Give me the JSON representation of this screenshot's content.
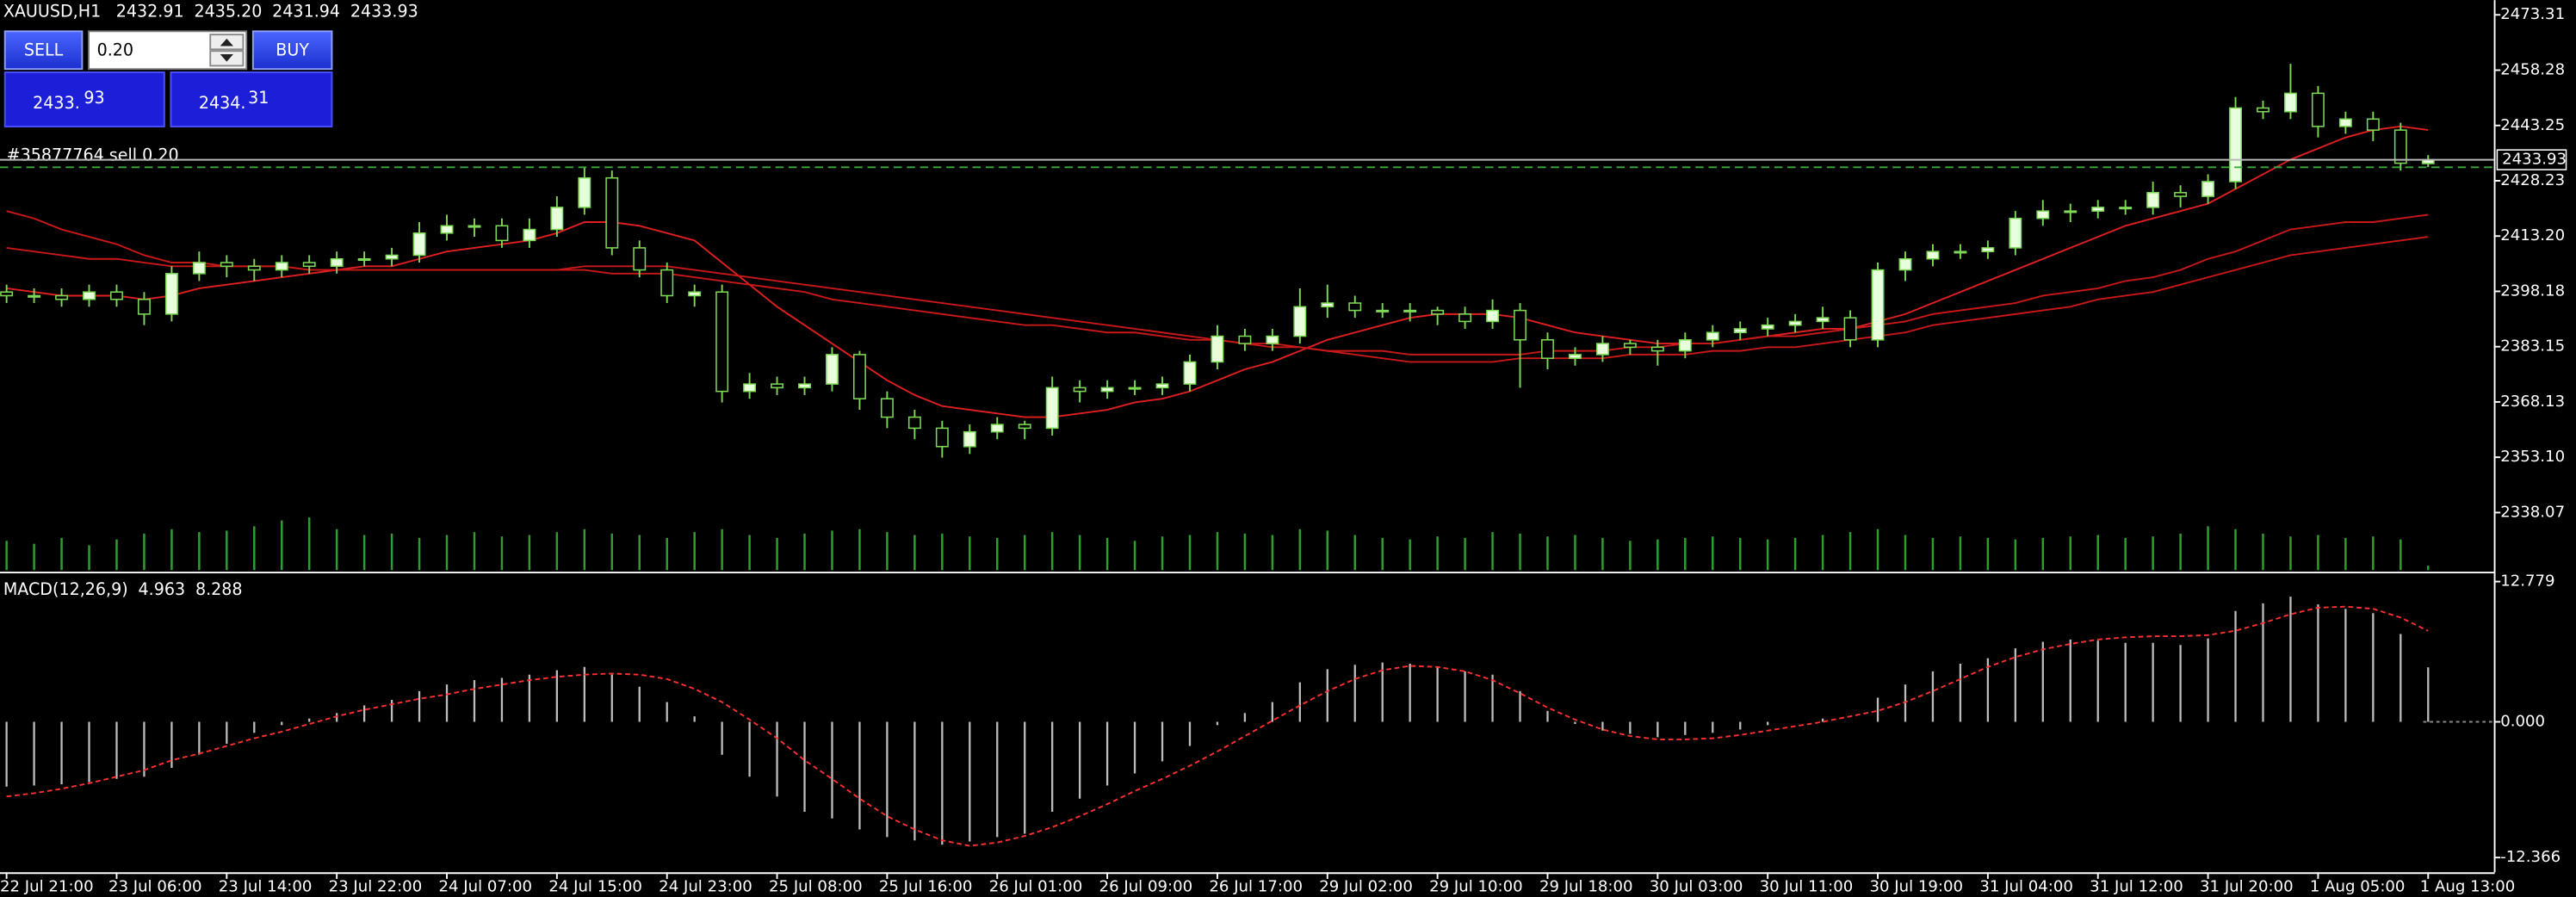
{
  "chart_data": [
    {
      "type": "candlestick",
      "title": "XAUUSD,H1",
      "header_values": [
        "2432.91",
        "2435.20",
        "2431.94",
        "2433.93"
      ],
      "categories": [
        "22 Jul 21:00",
        null,
        null,
        null,
        "23 Jul 06:00",
        null,
        null,
        null,
        "23 Jul 14:00",
        null,
        null,
        null,
        "23 Jul 22:00",
        null,
        null,
        null,
        "24 Jul 07:00",
        null,
        null,
        null,
        "24 Jul 15:00",
        null,
        null,
        null,
        "24 Jul 23:00",
        null,
        null,
        null,
        "25 Jul 08:00",
        null,
        null,
        null,
        "25 Jul 16:00",
        null,
        null,
        null,
        "26 Jul 01:00",
        null,
        null,
        null,
        "26 Jul 09:00",
        null,
        null,
        null,
        "26 Jul 17:00",
        null,
        null,
        null,
        "29 Jul 02:00",
        null,
        null,
        null,
        "29 Jul 10:00",
        null,
        null,
        null,
        "29 Jul 18:00",
        null,
        null,
        null,
        "30 Jul 03:00",
        null,
        null,
        null,
        "30 Jul 11:00",
        null,
        null,
        null,
        "30 Jul 19:00",
        null,
        null,
        null,
        "31 Jul 04:00",
        null,
        null,
        null,
        "31 Jul 12:00",
        null,
        null,
        null,
        "31 Jul 20:00",
        null,
        null,
        null,
        "1 Aug 05:00",
        null,
        null,
        null,
        "1 Aug 13:00"
      ],
      "open": [
        2398,
        2397,
        2397,
        2396,
        2398,
        2396,
        2392,
        2403,
        2406,
        2405,
        2404,
        2406,
        2405,
        2407,
        2407,
        2408,
        2414,
        2416,
        2416,
        2412,
        2415,
        2421,
        2429,
        2410,
        2404,
        2397,
        2398,
        2371,
        2373,
        2372,
        2373,
        2381,
        2369,
        2364,
        2361,
        2356,
        2360,
        2362,
        2361,
        2372,
        2371,
        2372,
        2372,
        2373,
        2379,
        2386,
        2384,
        2386,
        2394,
        2395,
        2393,
        2393,
        2393,
        2392,
        2390,
        2393,
        2385,
        2380,
        2381,
        2384,
        2383,
        2382,
        2385,
        2387,
        2388,
        2389,
        2390,
        2391,
        2385,
        2404,
        2407,
        2409,
        2409,
        2410,
        2418,
        2420,
        2420,
        2421,
        2421,
        2425,
        2424,
        2428,
        2448,
        2447,
        2452,
        2443,
        2445,
        2442,
        2432.91
      ],
      "high": [
        2400,
        2399,
        2399,
        2400,
        2400,
        2398,
        2405,
        2409,
        2408,
        2407,
        2408,
        2408,
        2409,
        2409,
        2410,
        2417,
        2419,
        2418,
        2418,
        2418,
        2424,
        2432,
        2431,
        2412,
        2406,
        2400,
        2400,
        2376,
        2375,
        2375,
        2383,
        2382,
        2371,
        2366,
        2363,
        2362,
        2364,
        2363,
        2375,
        2374,
        2374,
        2374,
        2375,
        2381,
        2389,
        2388,
        2388,
        2399,
        2400,
        2397,
        2395,
        2395,
        2394,
        2394,
        2396,
        2395,
        2387,
        2383,
        2386,
        2385,
        2385,
        2387,
        2389,
        2390,
        2391,
        2392,
        2394,
        2393,
        2406,
        2409,
        2411,
        2411,
        2412,
        2420,
        2423,
        2422,
        2423,
        2423,
        2428,
        2427,
        2430,
        2451,
        2450,
        2460,
        2454,
        2447,
        2447,
        2444,
        2435.2
      ],
      "low": [
        2395,
        2395,
        2394,
        2394,
        2394,
        2389,
        2390,
        2401,
        2402,
        2401,
        2402,
        2403,
        2403,
        2405,
        2405,
        2406,
        2412,
        2413,
        2410,
        2410,
        2413,
        2419,
        2408,
        2402,
        2395,
        2394,
        2368,
        2369,
        2370,
        2370,
        2371,
        2366,
        2361,
        2358,
        2353,
        2354,
        2358,
        2358,
        2359,
        2368,
        2369,
        2370,
        2370,
        2371,
        2377,
        2382,
        2382,
        2384,
        2391,
        2391,
        2391,
        2390,
        2389,
        2388,
        2388,
        2372,
        2377,
        2378,
        2379,
        2381,
        2378,
        2380,
        2383,
        2385,
        2386,
        2387,
        2388,
        2383,
        2383,
        2401,
        2405,
        2407,
        2407,
        2408,
        2416,
        2417,
        2418,
        2419,
        2419,
        2421,
        2422,
        2426,
        2445,
        2445,
        2440,
        2441,
        2439,
        2431,
        2431.94
      ],
      "close": [
        2397,
        2397,
        2396,
        2398,
        2396,
        2392,
        2403,
        2406,
        2405,
        2404,
        2406,
        2405,
        2407,
        2407,
        2408,
        2414,
        2416,
        2416,
        2412,
        2415,
        2421,
        2429,
        2410,
        2404,
        2397,
        2398,
        2371,
        2373,
        2372,
        2373,
        2381,
        2369,
        2364,
        2361,
        2356,
        2360,
        2362,
        2361,
        2372,
        2371,
        2372,
        2372,
        2373,
        2379,
        2386,
        2384,
        2386,
        2394,
        2395,
        2393,
        2393,
        2393,
        2392,
        2390,
        2393,
        2385,
        2380,
        2381,
        2384,
        2383,
        2382,
        2385,
        2387,
        2388,
        2389,
        2390,
        2391,
        2385,
        2404,
        2407,
        2409,
        2409,
        2410,
        2418,
        2420,
        2420,
        2421,
        2421,
        2425,
        2424,
        2428,
        2448,
        2447,
        2452,
        2443,
        2445,
        2442,
        2433,
        2433.93
      ],
      "volume": [
        20,
        18,
        22,
        17,
        21,
        25,
        28,
        26,
        27,
        30,
        34,
        36,
        28,
        24,
        25,
        22,
        24,
        26,
        23,
        24,
        26,
        28,
        25,
        24,
        22,
        26,
        28,
        24,
        22,
        25,
        27,
        28,
        26,
        24,
        25,
        23,
        22,
        24,
        26,
        24,
        22,
        20,
        23,
        24,
        26,
        25,
        24,
        28,
        27,
        24,
        22,
        21,
        23,
        22,
        26,
        25,
        23,
        24,
        22,
        20,
        21,
        22,
        23,
        22,
        21,
        22,
        24,
        26,
        28,
        24,
        22,
        23,
        22,
        21,
        22,
        23,
        24,
        22,
        23,
        25,
        30,
        28,
        25,
        23,
        24,
        22,
        23,
        21,
        3
      ],
      "moving_averages": [
        {
          "color": "#e02020",
          "values": [
            2399,
            2398,
            2397,
            2397,
            2397,
            2396,
            2397,
            2399,
            2400,
            2401,
            2402,
            2403,
            2404,
            2405,
            2405,
            2407,
            2409,
            2410,
            2411,
            2412,
            2414,
            2417,
            2417,
            2416,
            2414,
            2412,
            2406,
            2400,
            2394,
            2389,
            2384,
            2379,
            2374,
            2370,
            2367,
            2366,
            2365,
            2364,
            2364,
            2365,
            2366,
            2368,
            2369,
            2371,
            2374,
            2377,
            2379,
            2382,
            2385,
            2387,
            2389,
            2391,
            2392,
            2392,
            2392,
            2391,
            2389,
            2387,
            2386,
            2385,
            2384,
            2384,
            2384,
            2385,
            2386,
            2387,
            2388,
            2388,
            2390,
            2392,
            2395,
            2398,
            2401,
            2404,
            2407,
            2410,
            2413,
            2416,
            2418,
            2420,
            2422,
            2426,
            2430,
            2434,
            2437,
            2440,
            2442,
            2443,
            2442
          ]
        },
        {
          "color": "#c81818",
          "values": [
            2420,
            2418,
            2415,
            2413,
            2411,
            2408,
            2406,
            2406,
            2405,
            2405,
            2405,
            2404,
            2404,
            2404,
            2404,
            2404,
            2404,
            2404,
            2404,
            2404,
            2404,
            2404,
            2403,
            2403,
            2403,
            2402,
            2401,
            2400,
            2399,
            2398,
            2396,
            2395,
            2394,
            2393,
            2392,
            2391,
            2390,
            2389,
            2389,
            2388,
            2387,
            2387,
            2386,
            2385,
            2385,
            2384,
            2383,
            2383,
            2382,
            2382,
            2382,
            2381,
            2381,
            2381,
            2381,
            2381,
            2382,
            2382,
            2382,
            2383,
            2383,
            2384,
            2384,
            2385,
            2386,
            2386,
            2387,
            2388,
            2389,
            2390,
            2392,
            2393,
            2394,
            2395,
            2397,
            2398,
            2399,
            2401,
            2402,
            2404,
            2407,
            2409,
            2412,
            2415,
            2416,
            2417,
            2417,
            2418,
            2419
          ]
        },
        {
          "color": "#c81818",
          "values": [
            2410,
            2409,
            2408,
            2407,
            2407,
            2406,
            2405,
            2405,
            2405,
            2405,
            2405,
            2404,
            2404,
            2404,
            2404,
            2404,
            2404,
            2404,
            2404,
            2404,
            2404,
            2405,
            2405,
            2405,
            2405,
            2404,
            2403,
            2402,
            2401,
            2400,
            2399,
            2398,
            2397,
            2396,
            2395,
            2394,
            2393,
            2392,
            2391,
            2390,
            2389,
            2388,
            2387,
            2386,
            2385,
            2384,
            2384,
            2383,
            2382,
            2381,
            2380,
            2379,
            2379,
            2379,
            2379,
            2380,
            2380,
            2380,
            2380,
            2381,
            2381,
            2381,
            2382,
            2382,
            2383,
            2383,
            2384,
            2385,
            2386,
            2387,
            2389,
            2390,
            2391,
            2392,
            2393,
            2394,
            2396,
            2397,
            2398,
            2400,
            2402,
            2404,
            2406,
            2408,
            2409,
            2410,
            2411,
            2412,
            2413
          ]
        }
      ],
      "ylim": [
        2322.45,
        2477.33
      ],
      "yticks": [
        2473.31,
        2458.28,
        2443.25,
        2428.23,
        {
          "value": 2413.2,
          "label": "2413.20"
        },
        2398.18,
        2383.15,
        2368.13,
        {
          "value": 2353.1,
          "label": "2353.10"
        },
        2338.07
      ],
      "candle_color": "#7ed957",
      "bull_fill": "#e8ffdc",
      "bear_fill": "#000000",
      "volume_color": "#2f9e2f",
      "bid_line_color": "#b8b8b8",
      "order": {
        "label": "#35877764 sell 0.20",
        "price": 2431.9,
        "color": "#3fa63f"
      }
    },
    {
      "type": "macd",
      "title": "MACD(12,26,9)",
      "histogram": [
        -5.9,
        -5.8,
        -5.7,
        -5.5,
        -5.2,
        -5.0,
        -4.2,
        -3.0,
        -2.0,
        -1.0,
        -0.3,
        0.3,
        0.8,
        1.5,
        2.0,
        2.8,
        3.4,
        3.8,
        4.0,
        4.3,
        4.7,
        5.0,
        4.3,
        3.2,
        1.8,
        0.5,
        -3.0,
        -5.0,
        -6.8,
        -8.2,
        -8.8,
        -9.8,
        -10.5,
        -10.8,
        -11.2,
        -10.9,
        -10.5,
        -10.2,
        -8.2,
        -7.0,
        -5.8,
        -4.7,
        -3.6,
        -2.2,
        -0.3,
        0.8,
        1.8,
        3.6,
        4.8,
        5.2,
        5.4,
        5.3,
        5.0,
        4.6,
        4.3,
        2.8,
        1.0,
        -0.2,
        -0.8,
        -1.1,
        -1.4,
        -1.2,
        -1.0,
        -0.7,
        -0.3,
        0.0,
        0.3,
        0.0,
        2.2,
        3.4,
        4.6,
        5.3,
        5.8,
        6.7,
        7.3,
        7.5,
        7.4,
        7.2,
        7.2,
        7.0,
        7.6,
        10.1,
        10.8,
        11.4,
        10.7,
        10.3,
        9.9,
        8.0,
        4.963
      ],
      "signal": [
        -6.8,
        -6.5,
        -6.1,
        -5.6,
        -5.0,
        -4.4,
        -3.5,
        -2.9,
        -2.2,
        -1.5,
        -0.9,
        -0.2,
        0.5,
        1.1,
        1.6,
        2.1,
        2.5,
        3.0,
        3.4,
        3.8,
        4.1,
        4.3,
        4.4,
        4.3,
        3.9,
        3.0,
        1.8,
        0.2,
        -1.5,
        -3.5,
        -5.2,
        -7.0,
        -8.6,
        -9.8,
        -10.8,
        -11.3,
        -11.0,
        -10.4,
        -9.6,
        -8.6,
        -7.5,
        -6.3,
        -5.2,
        -4.0,
        -2.7,
        -1.3,
        0.1,
        1.5,
        2.8,
        3.9,
        4.7,
        5.1,
        5.0,
        4.6,
        3.8,
        2.6,
        1.3,
        0.2,
        -0.7,
        -1.3,
        -1.6,
        -1.6,
        -1.5,
        -1.2,
        -0.8,
        -0.4,
        0.0,
        0.5,
        1.0,
        1.8,
        2.8,
        3.9,
        5.0,
        5.9,
        6.6,
        7.1,
        7.5,
        7.7,
        7.8,
        7.8,
        7.9,
        8.3,
        9.0,
        9.8,
        10.4,
        10.5,
        10.3,
        9.5,
        8.288
      ],
      "histogram_color": "#bdbdbd",
      "signal_color": "#ff3030",
      "ylim": [
        -13.71,
        13.23
      ],
      "yticks": [
        12.779,
        {
          "value": 0,
          "label": "0.000"
        },
        -12.366
      ]
    }
  ],
  "trade_panel": {
    "sell": "SELL",
    "lot": "0.20",
    "buy": "BUY",
    "bid_main": "2433.",
    "bid_pips": "93",
    "ask_main": "2434.",
    "ask_pips": "31"
  }
}
